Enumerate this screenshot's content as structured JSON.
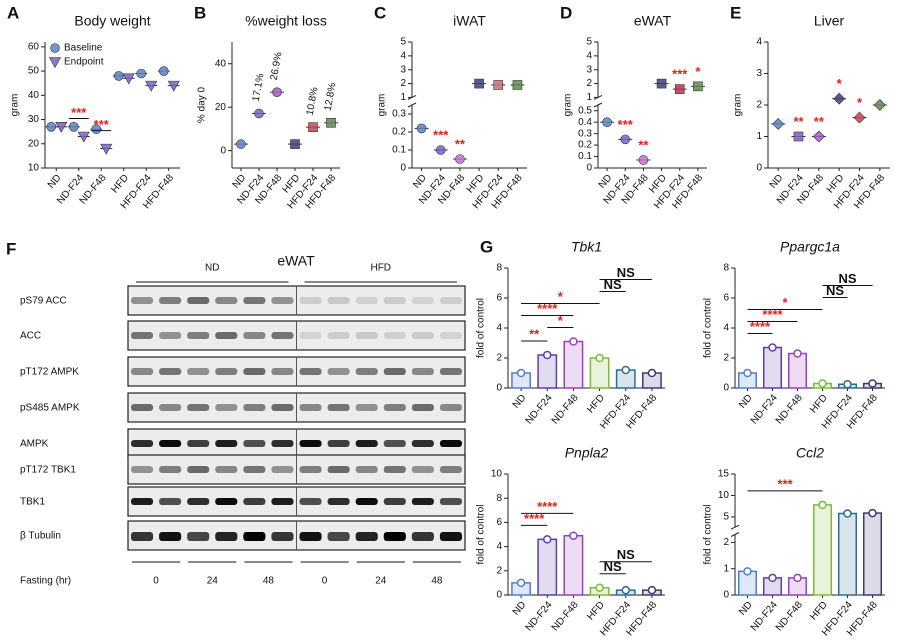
{
  "chart_data": [
    {
      "type": "dotplot",
      "panel": "A",
      "title": "Body weight",
      "ylabel": "gram",
      "categories": [
        "ND",
        "ND-F24",
        "ND-F48",
        "HFD",
        "HFD-F24",
        "HFD-F48"
      ],
      "series": [
        {
          "name": "Baseline",
          "color": "#5b82c6",
          "marker": "circle",
          "values": [
            27,
            27,
            26,
            48,
            49,
            50
          ]
        },
        {
          "name": "Endpoint",
          "color": "#7a5fc4",
          "marker": "triangle",
          "values": [
            27,
            23,
            18,
            47,
            44,
            44
          ],
          "annotations": [
            null,
            "***",
            "***",
            null,
            null,
            null
          ]
        }
      ],
      "legend": "upper left",
      "ylim": [
        10,
        62
      ],
      "yticks": [
        10,
        20,
        30,
        40,
        50,
        60
      ]
    },
    {
      "type": "dotplot",
      "panel": "B",
      "title": "%weight loss",
      "ylabel": "% day 0",
      "categories": [
        "ND",
        "ND-F24",
        "ND-F48",
        "HFD",
        "HFD-F24",
        "HFD-F48"
      ],
      "values": [
        3,
        17.1,
        26.9,
        3,
        10.8,
        12.8
      ],
      "value_labels": [
        null,
        "17.1%",
        "26.9%",
        null,
        "10.8%",
        "12.8%"
      ],
      "colors": [
        "#5b82c6",
        "#7a5fc4",
        "#a35bd0",
        "#3b3f7a",
        "#c84451",
        "#5f8a4e"
      ],
      "markers": [
        "circle",
        "circle",
        "circle",
        "square",
        "square",
        "square"
      ],
      "ylim": [
        -8,
        50
      ],
      "yticks": [
        0,
        20,
        40
      ]
    },
    {
      "type": "dotplot",
      "panel": "C",
      "title": "iWAT",
      "ylabel": "gram",
      "categories": [
        "ND",
        "ND-F24",
        "ND-F48",
        "HFD",
        "HFD-F24",
        "HFD-F48"
      ],
      "values": [
        0.22,
        0.1,
        0.05,
        2.0,
        1.9,
        1.9
      ],
      "annotations": [
        null,
        "***",
        "**",
        null,
        null,
        null
      ],
      "colors": [
        "#5b82c6",
        "#7a5fc4",
        "#c86fd0",
        "#3b3f7a",
        "#c8707a",
        "#5f8a4e"
      ],
      "markers": [
        "circle",
        "circle",
        "circle",
        "square",
        "square",
        "square"
      ],
      "ylim": [
        0,
        5
      ],
      "ybreak": [
        0.35,
        1
      ],
      "yticks": [
        0,
        0.1,
        0.2,
        0.3,
        1,
        2,
        3,
        4,
        5
      ]
    },
    {
      "type": "dotplot",
      "panel": "D",
      "title": "eWAT",
      "ylabel": "gram",
      "categories": [
        "ND",
        "ND-F24",
        "ND-F48",
        "HFD",
        "HFD-F24",
        "HFD-F48"
      ],
      "values": [
        0.4,
        0.25,
        0.07,
        2.0,
        1.6,
        1.8
      ],
      "annotations": [
        null,
        "***",
        "**",
        null,
        "***",
        "*"
      ],
      "colors": [
        "#5b82c6",
        "#7a5fc4",
        "#c86fd0",
        "#3b3f7a",
        "#b8344a",
        "#5f8a4e"
      ],
      "markers": [
        "circle",
        "circle",
        "circle",
        "square",
        "square",
        "square"
      ],
      "ylim": [
        0,
        5
      ],
      "ybreak": [
        0.55,
        1
      ],
      "yticks": [
        0,
        0.1,
        0.2,
        0.3,
        0.4,
        0.5,
        1,
        2,
        3,
        4,
        5
      ]
    },
    {
      "type": "dotplot",
      "panel": "E",
      "title": "Liver",
      "ylabel": "gram",
      "categories": [
        "ND",
        "ND-F24",
        "ND-F48",
        "HFD",
        "HFD-F24",
        "HFD-F48"
      ],
      "values": [
        1.4,
        1.0,
        1.0,
        2.2,
        1.6,
        2.0
      ],
      "annotations": [
        null,
        "**",
        "**",
        "*",
        "*",
        null
      ],
      "colors": [
        "#5b82c6",
        "#7a5fc4",
        "#a35bd0",
        "#3b3f7a",
        "#c84451",
        "#5f8a4e"
      ],
      "markers": [
        "diamond",
        "square",
        "diamond",
        "diamond",
        "diamond",
        "diamond"
      ],
      "ylim": [
        0,
        4
      ],
      "yticks": [
        0,
        1,
        2,
        3,
        4
      ]
    },
    {
      "type": "bar",
      "panel": "G",
      "title": "Tbk1",
      "title_style": "italic",
      "ylabel": "fold of control",
      "categories": [
        "ND",
        "ND-F24",
        "ND-F48",
        "HFD",
        "HFD-F24",
        "HFD-F48"
      ],
      "values": [
        1.0,
        2.2,
        3.1,
        2.0,
        1.2,
        1.0
      ],
      "colors": [
        "#4e7fc9",
        "#5b3fa8",
        "#9b3fc0",
        "#7dbb3a",
        "#2a6e8f",
        "#3e3a6e"
      ],
      "comparisons": [
        {
          "categories": [
            "ND",
            "ND-F24"
          ],
          "label": "**",
          "color": "#e0211d"
        },
        {
          "categories": [
            "ND-F24",
            "ND-F48"
          ],
          "label": "*",
          "color": "#e0211d"
        },
        {
          "categories": [
            "ND",
            "ND-F48"
          ],
          "label": "****",
          "color": "#e0211d"
        },
        {
          "categories": [
            "ND",
            "HFD"
          ],
          "label": "*",
          "color": "#e0211d"
        },
        {
          "categories": [
            "HFD",
            "HFD-F24"
          ],
          "label": "NS",
          "color": "#111111"
        },
        {
          "categories": [
            "HFD",
            "HFD-F48"
          ],
          "label": "NS",
          "color": "#111111"
        }
      ],
      "ylim": [
        0,
        8
      ],
      "yticks": [
        0,
        2,
        4,
        6,
        8
      ]
    },
    {
      "type": "bar",
      "title": "Ppargc1a",
      "title_style": "italic",
      "ylabel": "fold of control",
      "categories": [
        "ND",
        "ND-F24",
        "ND-F48",
        "HFD",
        "HFD-F24",
        "HFD-F48"
      ],
      "values": [
        1.0,
        2.7,
        2.3,
        0.3,
        0.25,
        0.3
      ],
      "colors": [
        "#4e7fc9",
        "#5b3fa8",
        "#9b3fc0",
        "#7dbb3a",
        "#2a6e8f",
        "#3e3a6e"
      ],
      "comparisons": [
        {
          "categories": [
            "ND",
            "ND-F24"
          ],
          "label": "****",
          "color": "#e0211d"
        },
        {
          "categories": [
            "ND",
            "ND-F48"
          ],
          "label": "****",
          "color": "#e0211d"
        },
        {
          "categories": [
            "ND",
            "HFD"
          ],
          "label": "*",
          "color": "#e0211d"
        },
        {
          "categories": [
            "HFD",
            "HFD-F24"
          ],
          "label": "NS",
          "color": "#111111"
        },
        {
          "categories": [
            "HFD",
            "HFD-F48"
          ],
          "label": "NS",
          "color": "#111111"
        }
      ],
      "ylim": [
        0,
        8
      ],
      "yticks": [
        0,
        2,
        4,
        6,
        8
      ]
    },
    {
      "type": "bar",
      "title": "Pnpla2",
      "title_style": "italic",
      "ylabel": "fold of control",
      "categories": [
        "ND",
        "ND-F24",
        "ND-F48",
        "HFD",
        "HFD-F24",
        "HFD-F48"
      ],
      "values": [
        1.0,
        4.6,
        4.9,
        0.6,
        0.4,
        0.4
      ],
      "colors": [
        "#4e7fc9",
        "#5b3fa8",
        "#9b3fc0",
        "#7dbb3a",
        "#2a6e8f",
        "#3e3a6e"
      ],
      "comparisons": [
        {
          "categories": [
            "ND",
            "ND-F24"
          ],
          "label": "****",
          "color": "#e0211d"
        },
        {
          "categories": [
            "ND",
            "ND-F48"
          ],
          "label": "****",
          "color": "#e0211d"
        },
        {
          "categories": [
            "HFD",
            "HFD-F24"
          ],
          "label": "NS",
          "color": "#111111"
        },
        {
          "categories": [
            "HFD",
            "HFD-F48"
          ],
          "label": "NS",
          "color": "#111111"
        }
      ],
      "ylim": [
        0,
        10
      ],
      "yticks": [
        0,
        2,
        4,
        6,
        8,
        10
      ]
    },
    {
      "type": "bar",
      "title": "Ccl2",
      "title_style": "italic",
      "ylabel": "fold of control",
      "categories": [
        "ND",
        "ND-F24",
        "ND-F48",
        "HFD",
        "HFD-F24",
        "HFD-F48"
      ],
      "values": [
        0.9,
        0.65,
        0.65,
        7.8,
        5.8,
        5.9
      ],
      "colors": [
        "#4e7fc9",
        "#5b3fa8",
        "#9b3fc0",
        "#7dbb3a",
        "#2a6e8f",
        "#3e3a6e"
      ],
      "comparisons": [
        {
          "categories": [
            "ND",
            "HFD"
          ],
          "label": "***",
          "color": "#e0211d"
        }
      ],
      "ylim": [
        0,
        15
      ],
      "ybreak": [
        2.3,
        2.6
      ],
      "yticks": [
        0,
        1,
        2,
        5,
        10,
        15
      ]
    }
  ],
  "blot": {
    "panel": "F",
    "title": "eWAT",
    "groups": [
      "ND",
      "HFD"
    ],
    "rows": [
      "pS79 ACC",
      "ACC",
      "pT172 AMPK",
      "pS485 AMPK",
      "AMPK",
      "pT172 TBK1",
      "TBK1",
      "β Tubulin"
    ],
    "fasting_label": "Fasting (hr)",
    "fasting": [
      "0",
      "24",
      "48",
      "0",
      "24",
      "48"
    ]
  }
}
